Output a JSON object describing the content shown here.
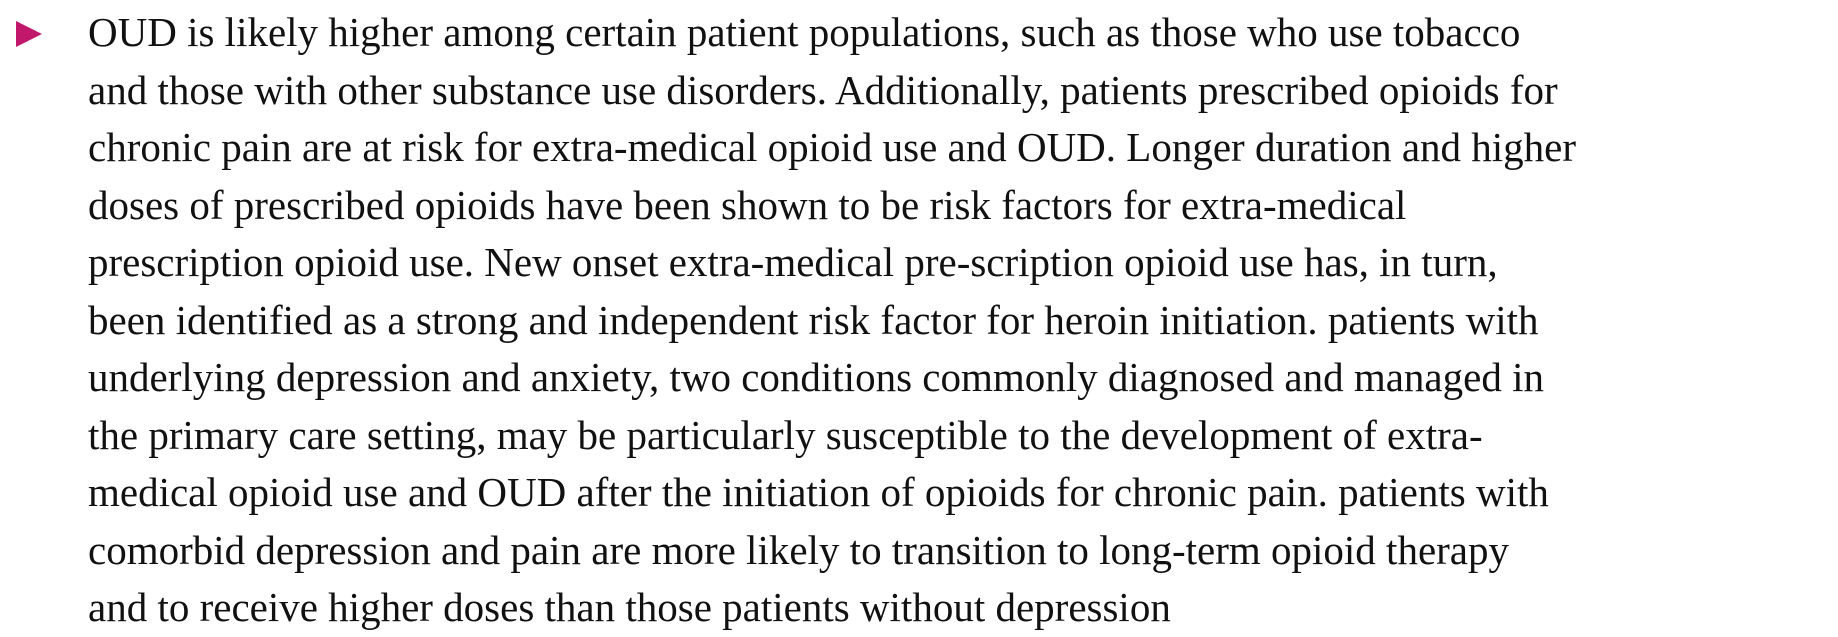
{
  "bullet": {
    "lines": [
      "OUD is likely higher among certain patient populations, such as those who use tobacco",
      "and those with other substance use disorders. Additionally, patients prescribed opioids for",
      "chronic pain are at risk for extra-medical opioid use and OUD. Longer duration and higher",
      "doses of prescribed opioids have been shown to be risk factors for extra-medical",
      "prescription opioid use. New onset extra-medical pre-scription opioid use has, in turn,",
      "been identified as a strong and independent risk factor for heroin initiation. patients with",
      "underlying depression and anxiety, two conditions commonly diagnosed and managed in",
      "the primary care setting, may be particularly susceptible to the development of extra-",
      "medical opioid use and OUD after the initiation of opioids for chronic pain. patients with",
      "comorbid depression and pain are more likely to transition to long-term opioid therapy",
      "and to receive higher doses than those patients without depression"
    ]
  }
}
